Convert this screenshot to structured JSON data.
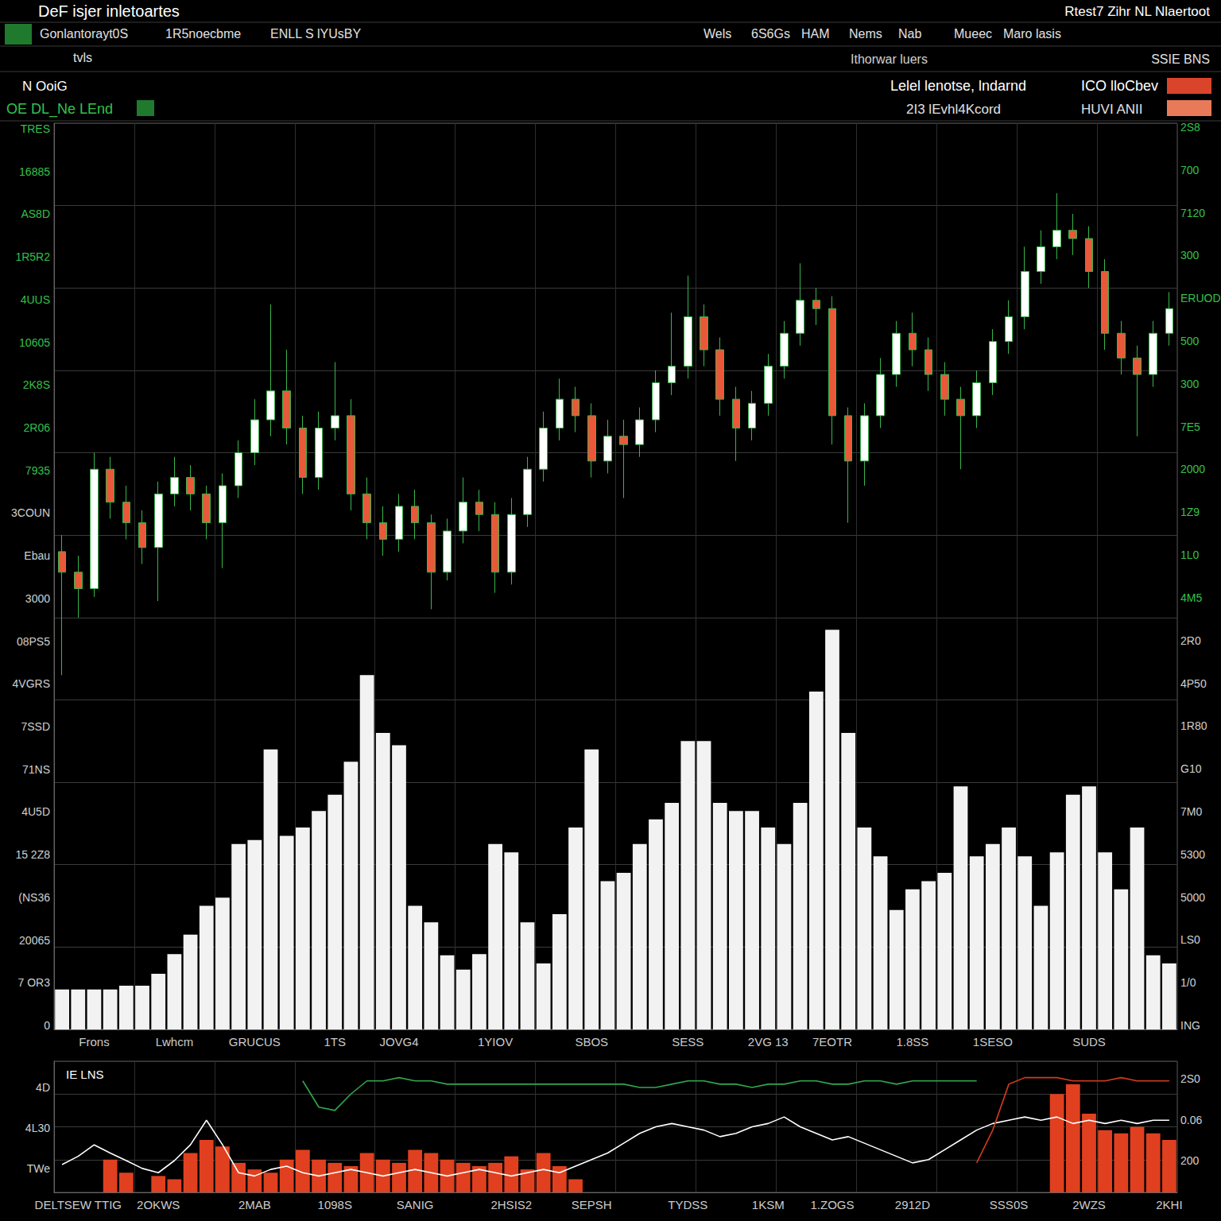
{
  "header": [
    "DeF isjer inletoartes",
    "Rtest7 Zihr NL Nlaertoot",
    "Gonlantorayt0S",
    "1R5noecbme",
    "ENLL S lYUsBY",
    "Wels",
    "6S6Gs",
    "HAM",
    "Nems",
    "Nab",
    "Mueec",
    "Maro lasis",
    "tvls",
    "Ithorwar luers",
    "SSIE BNS",
    "N OoiG",
    "OE DL_Ne LEnd",
    "Lelel lenotse, lndarnd",
    "ICO lloCbev",
    "2I3 lEvhl4Kcord",
    "HUVI ANII"
  ],
  "chart_data": [
    {
      "type": "candlestick",
      "categories": [
        null,
        null,
        "Frons",
        null,
        null,
        null,
        null,
        "Lwhcm",
        null,
        null,
        null,
        null,
        "GRUCUS",
        null,
        null,
        null,
        null,
        "1TS",
        null,
        null,
        null,
        "JOVG4",
        null,
        null,
        null,
        null,
        null,
        "1YIOV",
        null,
        null,
        null,
        null,
        null,
        "SBOS",
        null,
        null,
        null,
        null,
        null,
        "SESS",
        null,
        null,
        null,
        null,
        "2VG 13",
        null,
        null,
        null,
        "7EOTR",
        null,
        null,
        null,
        null,
        "1.8SS",
        null,
        null,
        null,
        null,
        "1SESO",
        null,
        null,
        null,
        null,
        null,
        "SUDS",
        null,
        null,
        null,
        null,
        null
      ],
      "series": [
        {
          "type": "bar",
          "color": "#f2f2f2",
          "values": [
            0.97,
            0.97,
            0.97,
            0.97,
            1.06,
            1.06,
            1.35,
            1.83,
            2.3,
            3.0,
            3.2,
            4.5,
            4.6,
            6.8,
            4.7,
            4.9,
            5.3,
            5.7,
            6.5,
            8.6,
            7.2,
            6.9,
            3.0,
            2.6,
            1.8,
            1.45,
            1.83,
            4.5,
            4.3,
            2.6,
            1.6,
            2.8,
            4.9,
            6.8,
            3.6,
            3.8,
            4.5,
            5.1,
            5.5,
            7.0,
            7.0,
            5.5,
            5.3,
            5.3,
            4.9,
            4.5,
            5.5,
            8.2,
            9.7,
            7.2,
            4.9,
            4.2,
            2.9,
            3.4,
            3.6,
            3.8,
            5.9,
            4.2,
            4.5,
            4.9,
            4.2,
            3.0,
            4.3,
            5.7,
            5.9,
            4.3,
            3.4,
            4.9,
            1.8,
            1.6
          ]
        },
        {
          "type": "candlestick",
          "values": [
            [
              11.6,
              11.1,
              8.6,
              12.0
            ],
            [
              11.1,
              10.7,
              10.0,
              11.5
            ],
            [
              10.7,
              13.6,
              10.5,
              14.0
            ],
            [
              13.6,
              12.8,
              12.4,
              13.9
            ],
            [
              12.8,
              12.3,
              11.9,
              13.2
            ],
            [
              12.3,
              11.7,
              11.3,
              12.6
            ],
            [
              11.7,
              13.0,
              10.4,
              13.3
            ],
            [
              13.0,
              13.4,
              12.7,
              13.9
            ],
            [
              13.4,
              13.0,
              12.6,
              13.7
            ],
            [
              13.0,
              12.3,
              11.9,
              13.2
            ],
            [
              12.3,
              13.2,
              11.2,
              13.5
            ],
            [
              13.2,
              14.0,
              12.9,
              14.3
            ],
            [
              14.0,
              14.8,
              13.7,
              15.3
            ],
            [
              14.8,
              15.5,
              14.4,
              17.6
            ],
            [
              15.5,
              14.6,
              14.2,
              16.5
            ],
            [
              14.6,
              13.4,
              13.0,
              14.9
            ],
            [
              13.4,
              14.6,
              13.1,
              15.0
            ],
            [
              14.6,
              14.9,
              14.3,
              16.2
            ],
            [
              14.9,
              13.0,
              12.6,
              15.3
            ],
            [
              13.0,
              12.3,
              11.9,
              13.4
            ],
            [
              12.3,
              11.9,
              11.5,
              12.7
            ],
            [
              11.9,
              12.7,
              11.6,
              13.0
            ],
            [
              12.7,
              12.3,
              11.9,
              13.1
            ],
            [
              12.3,
              11.1,
              10.2,
              12.5
            ],
            [
              11.1,
              12.1,
              10.9,
              12.4
            ],
            [
              12.1,
              12.8,
              11.8,
              13.4
            ],
            [
              12.8,
              12.5,
              12.1,
              13.1
            ],
            [
              12.5,
              11.1,
              10.6,
              12.8
            ],
            [
              11.1,
              12.5,
              10.8,
              12.9
            ],
            [
              12.5,
              13.6,
              12.2,
              13.9
            ],
            [
              13.6,
              14.6,
              13.3,
              15.0
            ],
            [
              14.6,
              15.3,
              14.3,
              15.8
            ],
            [
              15.3,
              14.9,
              14.5,
              15.6
            ],
            [
              14.9,
              13.8,
              13.4,
              15.2
            ],
            [
              13.8,
              14.4,
              13.5,
              14.8
            ],
            [
              14.4,
              14.2,
              12.9,
              14.8
            ],
            [
              14.2,
              14.8,
              13.9,
              15.1
            ],
            [
              14.8,
              15.7,
              14.5,
              16.0
            ],
            [
              15.7,
              16.1,
              15.4,
              17.4
            ],
            [
              16.1,
              17.3,
              15.8,
              18.3
            ],
            [
              17.3,
              16.5,
              16.1,
              17.6
            ],
            [
              16.5,
              15.3,
              14.9,
              16.8
            ],
            [
              15.3,
              14.6,
              13.8,
              15.6
            ],
            [
              14.6,
              15.2,
              14.3,
              15.5
            ],
            [
              15.2,
              16.1,
              14.9,
              16.4
            ],
            [
              16.1,
              16.9,
              15.8,
              17.2
            ],
            [
              16.9,
              17.7,
              16.6,
              18.6
            ],
            [
              17.7,
              17.5,
              17.1,
              18.0
            ],
            [
              17.5,
              14.9,
              14.2,
              17.8
            ],
            [
              14.9,
              13.8,
              12.3,
              15.1
            ],
            [
              13.8,
              14.9,
              13.2,
              15.2
            ],
            [
              14.9,
              15.9,
              14.6,
              16.3
            ],
            [
              15.9,
              16.9,
              15.6,
              17.2
            ],
            [
              16.9,
              16.5,
              16.1,
              17.4
            ],
            [
              16.5,
              15.9,
              15.5,
              16.8
            ],
            [
              15.9,
              15.3,
              14.9,
              16.2
            ],
            [
              15.3,
              14.9,
              13.6,
              15.6
            ],
            [
              14.9,
              15.7,
              14.6,
              16.0
            ],
            [
              15.7,
              16.7,
              15.4,
              17.0
            ],
            [
              16.7,
              17.3,
              16.4,
              17.7
            ],
            [
              17.3,
              18.4,
              17.0,
              19.0
            ],
            [
              18.4,
              19.0,
              18.1,
              19.4
            ],
            [
              19.0,
              19.4,
              18.7,
              20.3
            ],
            [
              19.4,
              19.2,
              18.8,
              19.8
            ],
            [
              19.2,
              18.4,
              18.0,
              19.5
            ],
            [
              18.4,
              16.9,
              16.5,
              18.7
            ],
            [
              16.9,
              16.3,
              15.9,
              17.2
            ],
            [
              16.3,
              15.9,
              14.4,
              16.6
            ],
            [
              15.9,
              16.9,
              15.6,
              17.2
            ],
            [
              16.9,
              17.5,
              16.6,
              17.9
            ]
          ],
          "colors": [
            "#e8593a",
            "#e8593a",
            "#ffffff",
            "#e8593a",
            "#e8593a",
            "#e8593a",
            "#ffffff",
            "#ffffff",
            "#e8593a",
            "#e8593a",
            "#ffffff",
            "#ffffff",
            "#ffffff",
            "#ffffff",
            "#e8593a",
            "#e8593a",
            "#ffffff",
            "#ffffff",
            "#e8593a",
            "#e8593a",
            "#e8593a",
            "#ffffff",
            "#e8593a",
            "#e8593a",
            "#ffffff",
            "#ffffff",
            "#e8593a",
            "#e8593a",
            "#ffffff",
            "#ffffff",
            "#ffffff",
            "#ffffff",
            "#e8593a",
            "#e8593a",
            "#ffffff",
            "#e8593a",
            "#ffffff",
            "#ffffff",
            "#ffffff",
            "#ffffff",
            "#e8593a",
            "#e8593a",
            "#e8593a",
            "#ffffff",
            "#ffffff",
            "#ffffff",
            "#ffffff",
            "#e8593a",
            "#e8593a",
            "#e8593a",
            "#ffffff",
            "#ffffff",
            "#ffffff",
            "#e8593a",
            "#e8593a",
            "#e8593a",
            "#e8593a",
            "#ffffff",
            "#ffffff",
            "#ffffff",
            "#ffffff",
            "#ffffff",
            "#ffffff",
            "#e8593a",
            "#e8593a",
            "#e8593a",
            "#e8593a",
            "#e8593a",
            "#ffffff",
            "#ffffff"
          ]
        }
      ],
      "ylim": [
        0,
        22
      ],
      "yticks": [
        0,
        2,
        4,
        6,
        8,
        10,
        12,
        14,
        16,
        18,
        20,
        22
      ],
      "grid": true,
      "tick_labels": "x",
      "left_labels": [
        "TRES",
        "16885",
        "AS8D",
        "1R5R2",
        "4UUS",
        "10605",
        "2K8S",
        "2R06",
        "7935",
        "3COUN",
        "Ebau",
        "3000",
        "08PS5",
        "4VGRS",
        "7SSD",
        "71NS",
        "4U5D",
        "15 2Z8",
        "(NS36",
        "20065",
        "7 OR3",
        "0"
      ],
      "right_labels": [
        "2S8",
        "700",
        "7120",
        "300",
        "ERUOD",
        "500",
        "300",
        "7E5",
        "2000",
        "1Z9",
        "1L0",
        "4M5",
        "2R0",
        "4P50",
        "1R80",
        "G10",
        "7M0",
        "5300",
        "5000",
        "LS0",
        "1/0",
        "ING"
      ]
    },
    {
      "type": "line",
      "title": "IE LNS",
      "categories": [
        null,
        "DELTSEW TTIG",
        null,
        null,
        null,
        null,
        "2OKWS",
        null,
        null,
        null,
        null,
        null,
        "2MAB",
        null,
        null,
        null,
        null,
        "1098S",
        null,
        null,
        null,
        null,
        "SANIG",
        null,
        null,
        null,
        null,
        null,
        "2HSIS2",
        null,
        null,
        null,
        null,
        "SEPSH",
        null,
        null,
        null,
        null,
        null,
        "TYDSS",
        null,
        null,
        null,
        null,
        "1KSM",
        null,
        null,
        null,
        "1.ZOGS",
        null,
        null,
        null,
        null,
        "2912D",
        null,
        null,
        null,
        null,
        null,
        "SSS0S",
        null,
        null,
        null,
        null,
        "2WZS",
        null,
        null,
        null,
        null,
        "2KHI"
      ],
      "series": [
        {
          "type": "bar",
          "color": "#e0401f",
          "values": [
            null,
            null,
            null,
            1.0,
            0.6,
            null,
            0.5,
            0.4,
            1.2,
            1.6,
            1.4,
            0.9,
            0.7,
            0.6,
            1.0,
            1.3,
            1.0,
            0.9,
            0.8,
            1.2,
            1.0,
            0.9,
            1.3,
            1.2,
            1.0,
            0.9,
            0.8,
            0.9,
            1.1,
            0.7,
            1.2,
            0.8,
            0.4,
            null,
            null,
            null,
            null,
            null,
            null,
            null,
            null,
            null,
            null,
            null,
            null,
            null,
            null,
            null,
            null,
            null,
            null,
            null,
            null,
            null,
            null,
            null,
            null,
            null,
            null,
            null,
            null,
            null,
            3.0,
            3.3,
            2.4,
            1.9,
            1.8,
            2.0,
            1.8,
            1.6
          ]
        },
        {
          "type": "line",
          "color": "#ffffff",
          "values": [
            0.85,
            1.1,
            1.45,
            1.2,
            0.97,
            0.73,
            0.6,
            0.97,
            1.45,
            2.2,
            1.45,
            0.6,
            0.5,
            0.7,
            0.8,
            0.6,
            0.5,
            0.6,
            0.7,
            0.6,
            0.5,
            0.6,
            0.7,
            0.6,
            0.5,
            0.6,
            0.7,
            0.6,
            0.5,
            0.6,
            0.7,
            0.6,
            0.8,
            1.0,
            1.2,
            1.5,
            1.8,
            2.0,
            2.1,
            2.0,
            1.9,
            1.7,
            1.8,
            2.0,
            2.1,
            2.3,
            2.0,
            1.8,
            1.6,
            1.7,
            1.5,
            1.3,
            1.1,
            0.9,
            1.0,
            1.3,
            1.6,
            1.9,
            2.1,
            2.2,
            2.3,
            2.2,
            2.3,
            2.1,
            2.2,
            2.1,
            2.2,
            2.1,
            2.2,
            2.2
          ]
        },
        {
          "type": "line",
          "color": "#2fa84f",
          "values": [
            null,
            null,
            null,
            null,
            null,
            null,
            null,
            null,
            null,
            null,
            null,
            null,
            null,
            null,
            null,
            3.4,
            2.6,
            2.5,
            3.0,
            3.4,
            3.4,
            3.5,
            3.4,
            3.4,
            3.3,
            3.3,
            3.3,
            3.3,
            3.3,
            3.3,
            3.3,
            3.3,
            3.3,
            3.3,
            3.3,
            3.3,
            3.2,
            3.2,
            3.3,
            3.4,
            3.4,
            3.3,
            3.3,
            3.2,
            3.3,
            3.3,
            3.4,
            3.4,
            3.3,
            3.3,
            3.4,
            3.4,
            3.3,
            3.4,
            3.4,
            3.4,
            3.4,
            3.4,
            null,
            null,
            null,
            null,
            null,
            null,
            null,
            null,
            null,
            null,
            null,
            null
          ]
        },
        {
          "type": "line",
          "color": "#d23b1f",
          "values": [
            null,
            null,
            null,
            null,
            null,
            null,
            null,
            null,
            null,
            null,
            null,
            null,
            null,
            null,
            null,
            null,
            null,
            null,
            null,
            null,
            null,
            null,
            null,
            null,
            null,
            null,
            null,
            null,
            null,
            null,
            null,
            null,
            null,
            null,
            null,
            null,
            null,
            null,
            null,
            null,
            null,
            null,
            null,
            null,
            null,
            null,
            null,
            null,
            null,
            null,
            null,
            null,
            null,
            null,
            null,
            null,
            null,
            0.9,
            1.9,
            3.3,
            3.5,
            3.5,
            3.5,
            3.4,
            3.4,
            3.4,
            3.5,
            3.4,
            3.4,
            3.4
          ]
        }
      ],
      "ylim": [
        0,
        4
      ],
      "yticks": [
        0,
        1,
        2,
        3,
        4
      ],
      "grid": true,
      "tick_labels": "x",
      "left_labels": [
        "4D",
        "4L30",
        "TWe"
      ],
      "right_labels": [
        "2S0",
        "0.06",
        "200"
      ]
    }
  ]
}
